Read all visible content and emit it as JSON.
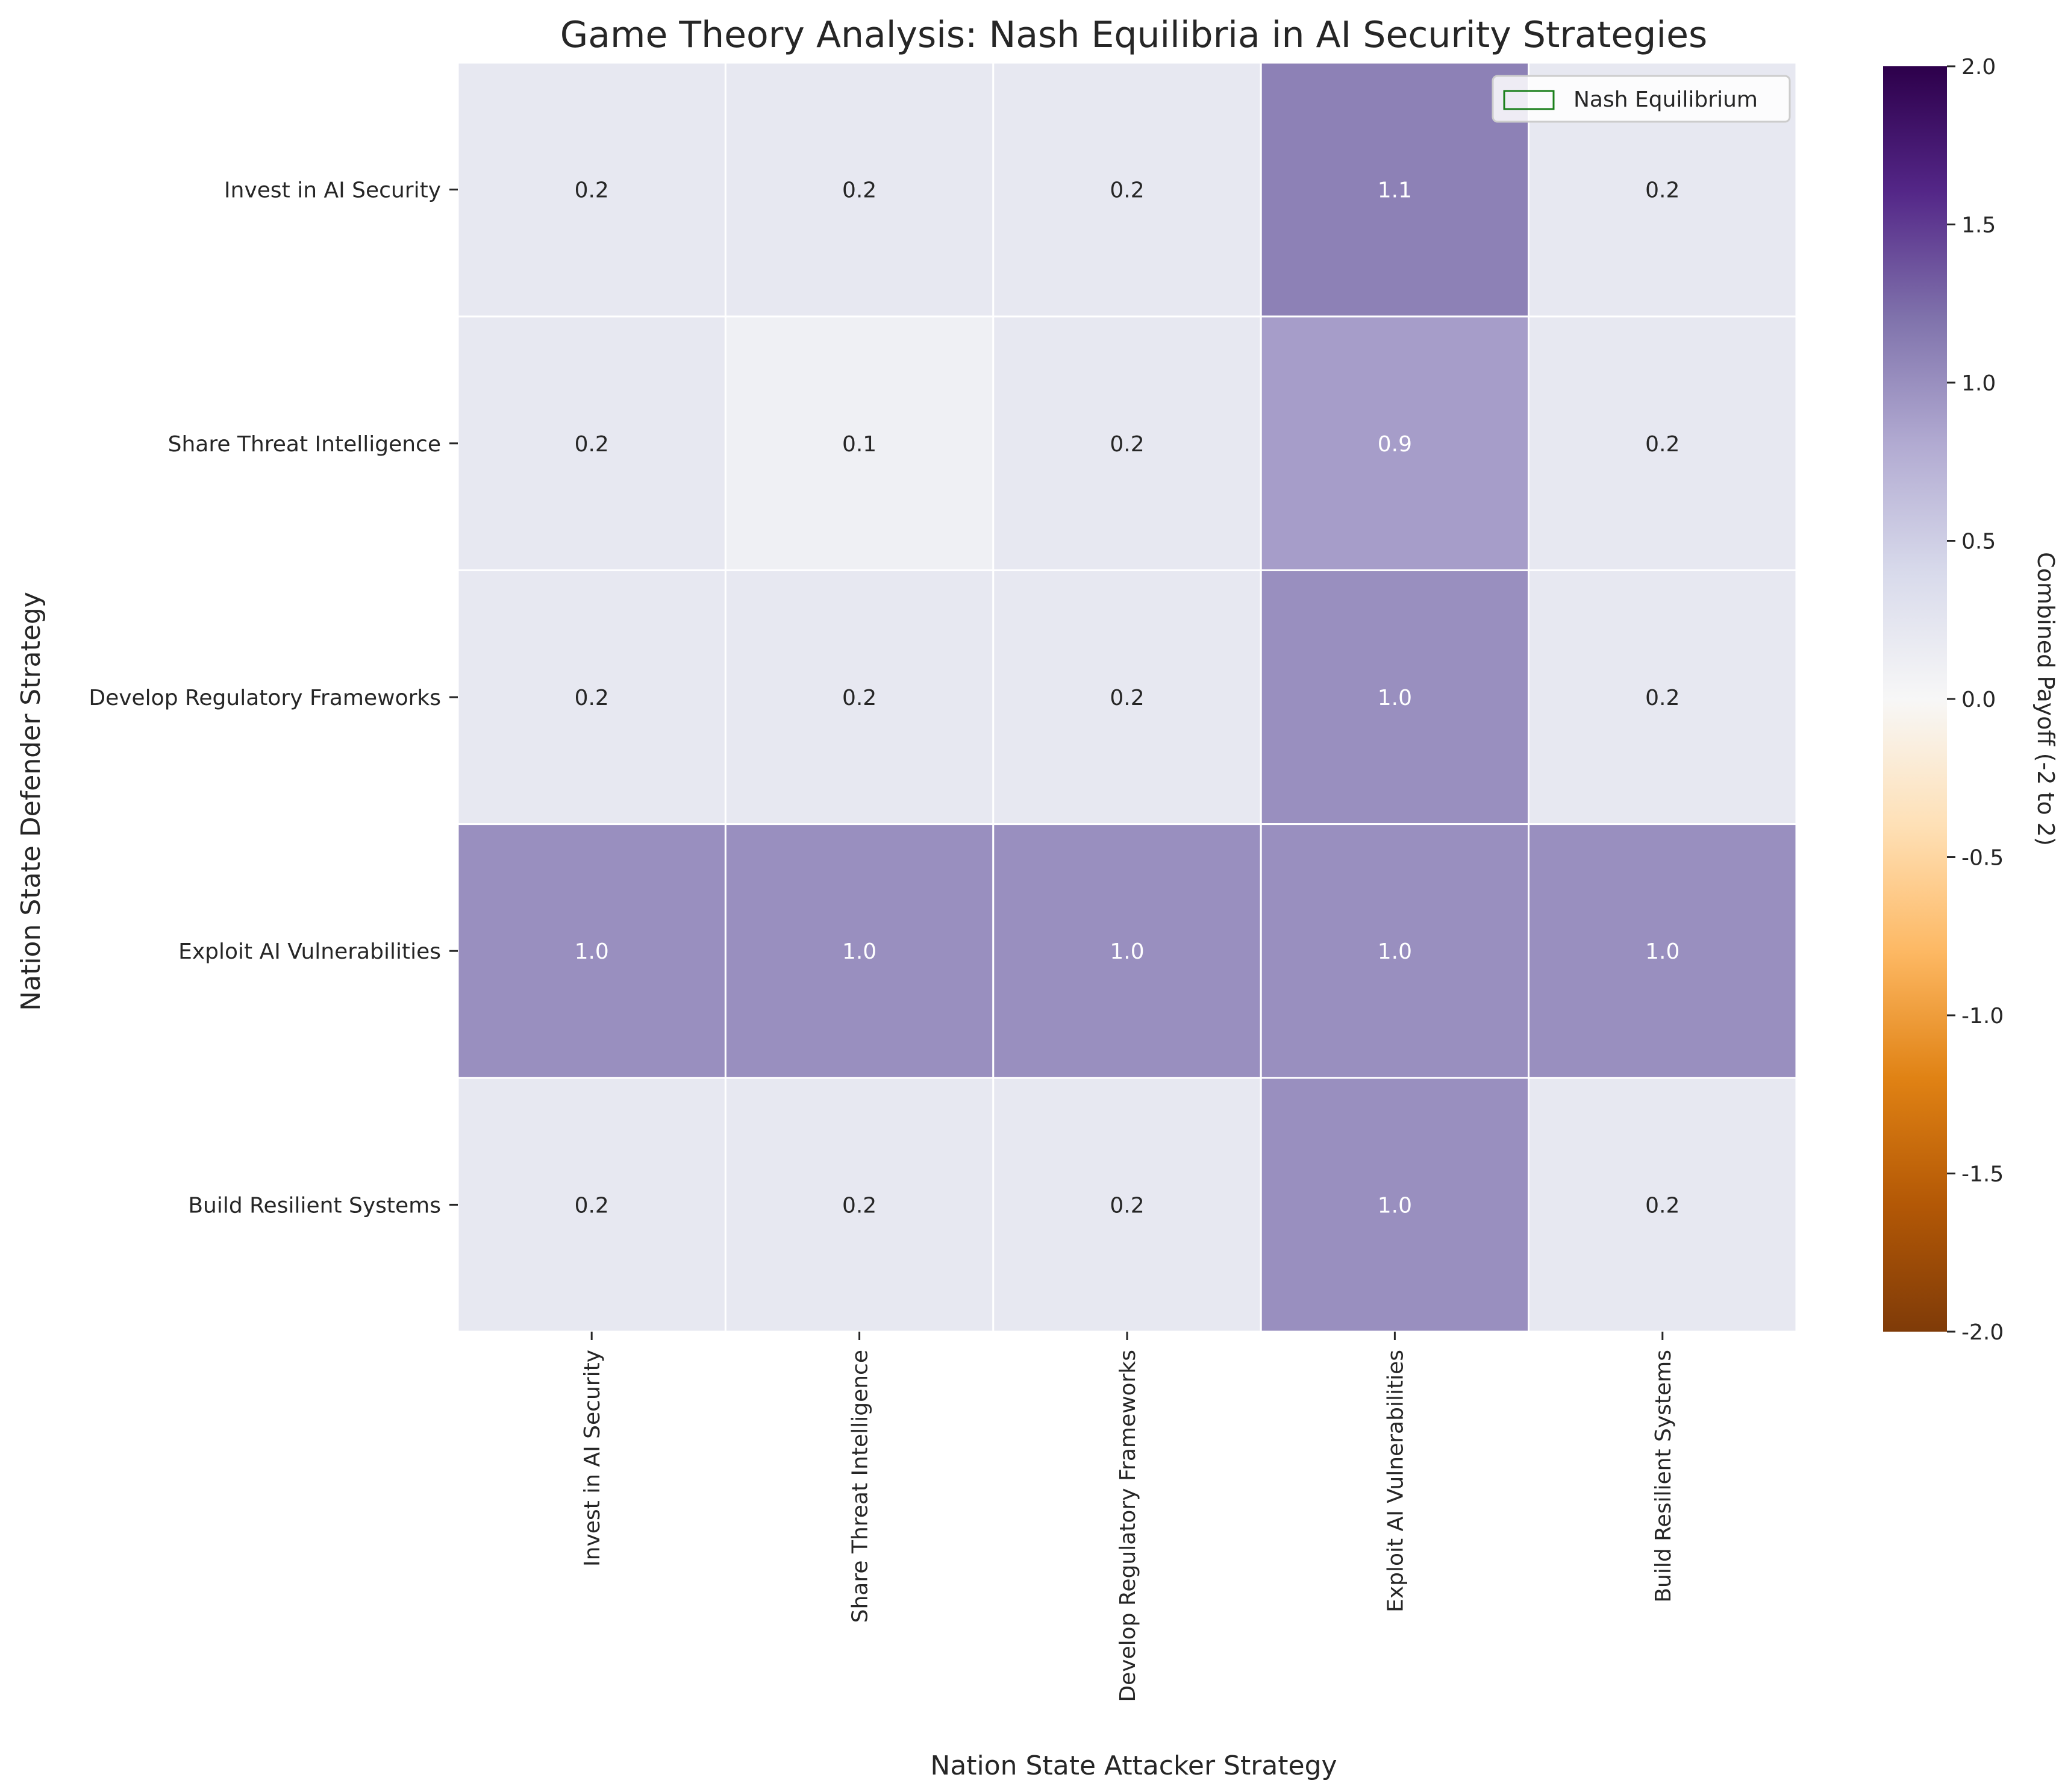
{
  "chart_data": {
    "type": "heatmap",
    "title": "Game Theory Analysis: Nash Equilibria in AI Security Strategies",
    "xlabel": "Nation State Attacker Strategy",
    "ylabel": "Nation State Defender Strategy",
    "x_categories": [
      "Invest in AI Security",
      "Share Threat Intelligence",
      "Develop Regulatory Frameworks",
      "Exploit AI Vulnerabilities",
      "Build Resilient Systems"
    ],
    "y_categories": [
      "Invest in AI Security",
      "Share Threat Intelligence",
      "Develop Regulatory Frameworks",
      "Exploit AI Vulnerabilities",
      "Build Resilient Systems"
    ],
    "values": [
      [
        0.2,
        0.2,
        0.2,
        1.1,
        0.2
      ],
      [
        0.2,
        0.1,
        0.2,
        0.9,
        0.2
      ],
      [
        0.2,
        0.2,
        0.2,
        1.0,
        0.2
      ],
      [
        1.0,
        1.0,
        1.0,
        1.0,
        1.0
      ],
      [
        0.2,
        0.2,
        0.2,
        1.0,
        0.2
      ]
    ],
    "colorbar": {
      "label": "Combined Payoff (-2 to 2)",
      "range": [
        -2.0,
        2.0
      ],
      "ticks": [
        "-2.0",
        "-1.5",
        "-1.0",
        "-0.5",
        "0.0",
        "0.5",
        "1.0",
        "1.5",
        "2.0"
      ],
      "colormap": "PuOr"
    },
    "legend": {
      "entries": [
        "Nash Equilibrium"
      ],
      "placement": "top-right",
      "color": "#1a7f1a"
    }
  }
}
